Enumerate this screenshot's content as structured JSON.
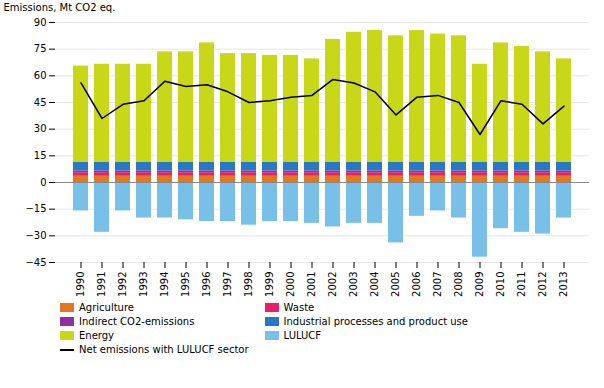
{
  "chart_data": {
    "type": "bar",
    "stacked": true,
    "categories": [
      "1990",
      "1991",
      "1992",
      "1993",
      "1994",
      "1995",
      "1996",
      "1997",
      "1998",
      "1999",
      "2000",
      "2001",
      "2002",
      "2003",
      "2004",
      "2005",
      "2006",
      "2007",
      "2008",
      "2009",
      "2010",
      "2011",
      "2012",
      "2013"
    ],
    "series": [
      {
        "name": "Agriculture",
        "color": "#e07820",
        "values": [
          3.5,
          3.5,
          3.5,
          3.5,
          3.5,
          3.5,
          3.5,
          3.5,
          3.5,
          3.5,
          3.5,
          3.5,
          3.5,
          3.5,
          3.5,
          3.5,
          3.5,
          3.5,
          3.5,
          3.5,
          3.5,
          3.5,
          3.5,
          3.5
        ]
      },
      {
        "name": "Waste",
        "color": "#e8206a",
        "values": [
          2.0,
          2.0,
          2.0,
          2.0,
          2.0,
          2.0,
          2.0,
          2.0,
          2.0,
          2.0,
          2.0,
          2.0,
          2.0,
          2.0,
          2.0,
          2.0,
          2.0,
          2.0,
          2.0,
          2.0,
          2.0,
          2.0,
          2.0,
          2.0
        ]
      },
      {
        "name": "Indirect CO2-emissions",
        "color": "#9030a0",
        "values": [
          1.0,
          1.0,
          1.0,
          1.0,
          1.0,
          1.0,
          1.0,
          1.0,
          1.0,
          1.0,
          1.0,
          1.0,
          1.0,
          1.0,
          1.0,
          1.0,
          1.0,
          1.0,
          1.0,
          1.0,
          1.0,
          1.0,
          1.0,
          1.0
        ]
      },
      {
        "name": "Industrial processes and product use",
        "color": "#2878c8",
        "values": [
          5.0,
          5.0,
          5.0,
          5.0,
          5.0,
          5.0,
          5.0,
          5.0,
          5.0,
          5.0,
          5.0,
          5.0,
          5.0,
          5.0,
          5.0,
          5.0,
          5.0,
          5.0,
          5.0,
          5.0,
          5.0,
          5.0,
          5.0,
          5.0
        ]
      },
      {
        "name": "Energy",
        "color": "#c8d818",
        "values": [
          54,
          55,
          55,
          55,
          62,
          62,
          67,
          61,
          61,
          60,
          60,
          58,
          69,
          73,
          74,
          71,
          74,
          72,
          71,
          55,
          67,
          65,
          62,
          58
        ]
      },
      {
        "name": "LULUCF",
        "color": "#78c0e8",
        "values": [
          -16,
          -28,
          -16,
          -20,
          -20,
          -21,
          -22,
          -22,
          -24,
          -22,
          -22,
          -23,
          -25,
          -23,
          -23,
          -34,
          -19,
          -16,
          -20,
          -42,
          -26,
          -28,
          -29,
          -20
        ]
      },
      {
        "name": "Net emissions with LULUCF sector",
        "type": "line",
        "color": "#000000",
        "values": [
          56,
          36,
          44,
          46,
          57,
          54,
          55,
          51,
          45,
          46,
          48,
          49,
          58,
          56,
          51,
          38,
          48,
          49,
          45,
          27,
          46,
          44,
          33,
          43
        ]
      }
    ],
    "ylabel": "Emissions, Mt CO2 eq.",
    "ylim": [
      -45,
      90
    ],
    "yticks": [
      -45,
      -30,
      -15,
      0,
      15,
      30,
      45,
      60,
      75,
      90
    ],
    "grid": true,
    "legend": "bottom"
  }
}
